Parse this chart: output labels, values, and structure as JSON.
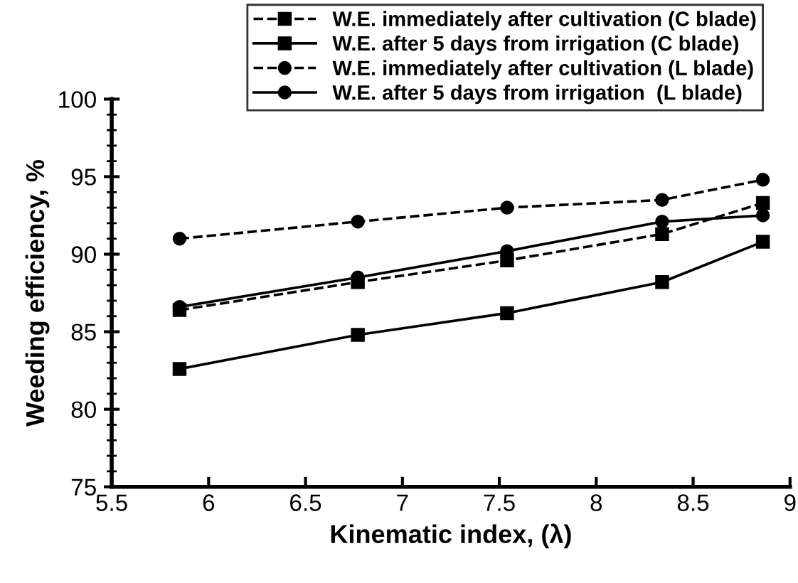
{
  "chart_data": {
    "type": "line",
    "xlabel": "Kinematic index, (λ)",
    "ylabel": "Weeding efficiency, %",
    "x": [
      5.85,
      6.77,
      7.54,
      8.34,
      8.86
    ],
    "series": [
      {
        "name": "W.E. immediately after cultivation (C blade)",
        "color": "#000000",
        "marker": "square",
        "line_style": "dashed",
        "values": [
          86.4,
          88.2,
          89.6,
          91.3,
          93.3
        ]
      },
      {
        "name": "W.E. after 5 days from irrigation (C blade)",
        "color": "#000000",
        "marker": "square",
        "line_style": "solid",
        "values": [
          82.6,
          84.8,
          86.2,
          88.2,
          90.8
        ]
      },
      {
        "name": "W.E. immediately after cultivation (L blade)",
        "color": "#000000",
        "marker": "circle",
        "line_style": "dashed",
        "values": [
          91.0,
          92.1,
          93.0,
          93.5,
          94.8
        ]
      },
      {
        "name": "W.E. after 5 days from irrigation  (L blade)",
        "color": "#000000",
        "marker": "circle",
        "line_style": "solid",
        "values": [
          86.6,
          88.5,
          90.2,
          92.1,
          92.5
        ]
      }
    ],
    "xlim": [
      5.5,
      9
    ],
    "xticks": [
      5.5,
      6,
      6.5,
      7,
      7.5,
      8,
      8.5,
      9
    ],
    "ylim": [
      75,
      100
    ],
    "yticks": [
      75,
      {
        "value": 76,
        "label": null
      },
      {
        "value": 77,
        "label": null
      },
      {
        "value": 78,
        "label": null
      },
      {
        "value": 79,
        "label": null
      },
      80,
      {
        "value": 81,
        "label": null
      },
      {
        "value": 82,
        "label": null
      },
      {
        "value": 83,
        "label": null
      },
      {
        "value": 84,
        "label": null
      },
      85,
      {
        "value": 86,
        "label": null
      },
      {
        "value": 87,
        "label": null
      },
      {
        "value": 88,
        "label": null
      },
      {
        "value": 89,
        "label": null
      },
      90,
      {
        "value": 91,
        "label": null
      },
      {
        "value": 92,
        "label": null
      },
      {
        "value": 93,
        "label": null
      },
      {
        "value": 94,
        "label": null
      },
      95,
      {
        "value": 96,
        "label": null
      },
      {
        "value": 97,
        "label": null
      },
      {
        "value": 98,
        "label": null
      },
      {
        "value": 99,
        "label": null
      },
      100
    ],
    "grid": false,
    "legend": "top"
  }
}
